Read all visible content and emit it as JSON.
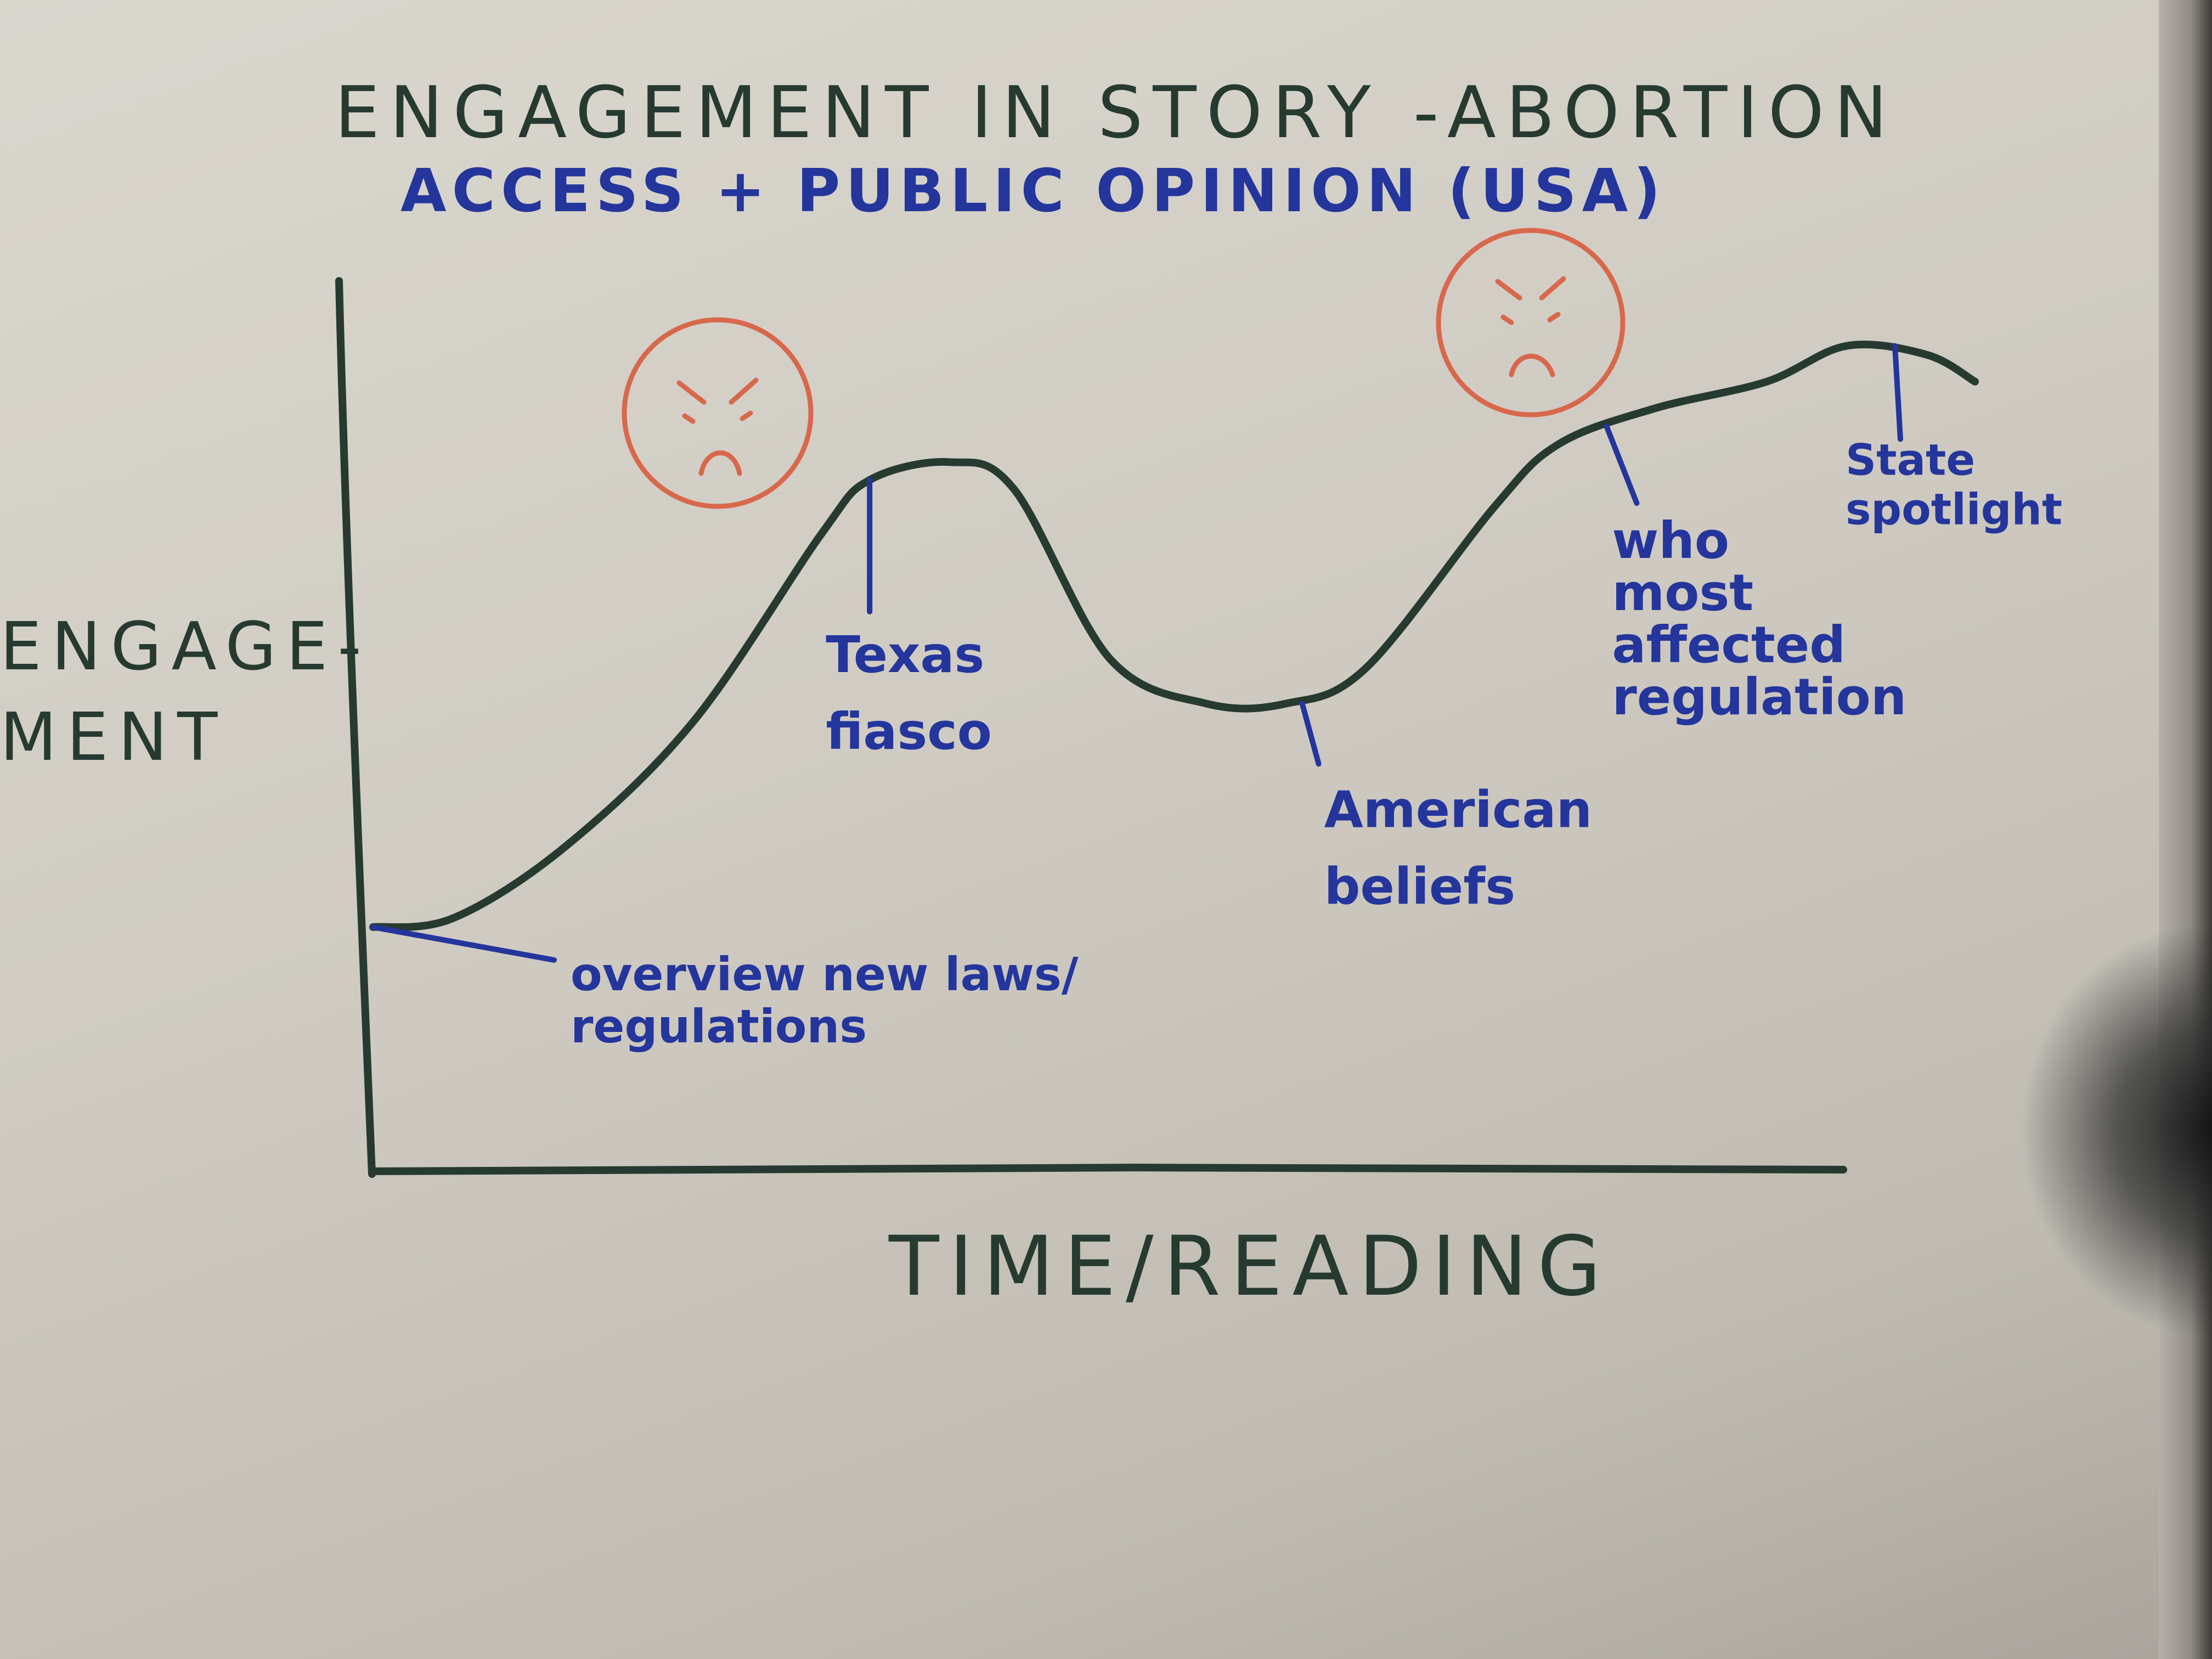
{
  "chart_data": {
    "type": "line",
    "title": "ENGAGEMENT IN STORY -ABORTION",
    "subtitle": "ACCESS + PUBLIC OPINION (USA)",
    "ylabel_line1": "ENGAGE-",
    "ylabel_line2": "MENT",
    "xlabel": "TIME/READING",
    "grid": false,
    "ylim": [
      0,
      100
    ],
    "xlim": [
      0,
      100
    ],
    "series": [
      {
        "x": [
          0,
          5,
          12,
          20,
          28,
          31,
          36,
          40,
          46,
          52,
          57,
          62,
          70,
          74,
          80,
          87,
          92,
          97,
          100
        ],
        "values": [
          27,
          28,
          36,
          50,
          71,
          77,
          79,
          76,
          57,
          52,
          52,
          56,
          74,
          81,
          85,
          88,
          92,
          91,
          88
        ]
      }
    ],
    "annotations": [
      {
        "label": "overview new laws/",
        "label2": "regulations",
        "x": 0,
        "y": 27
      },
      {
        "label": "Texas",
        "label2": "fiasco",
        "x": 31,
        "y": 77
      },
      {
        "label": "American",
        "label2": "beliefs",
        "x": 58,
        "y": 52
      },
      {
        "label": "who",
        "label2": "most",
        "label3": "affected",
        "label4": "regulation",
        "x": 77,
        "y": 83
      },
      {
        "label": "State",
        "label2": "spotlight",
        "x": 95,
        "y": 92
      }
    ],
    "markers": [
      {
        "icon": "angry-face-icon",
        "near": "Texas fiasco",
        "color": "#d8684c"
      },
      {
        "icon": "angry-face-icon",
        "near": "who most affected regulation",
        "color": "#d8684c"
      }
    ],
    "colors": {
      "curve": "#263a30",
      "axes": "#263a30",
      "annotations": "#24359c",
      "faces": "#d8684c",
      "title": "#263a30",
      "subtitle": "#24359c"
    }
  }
}
